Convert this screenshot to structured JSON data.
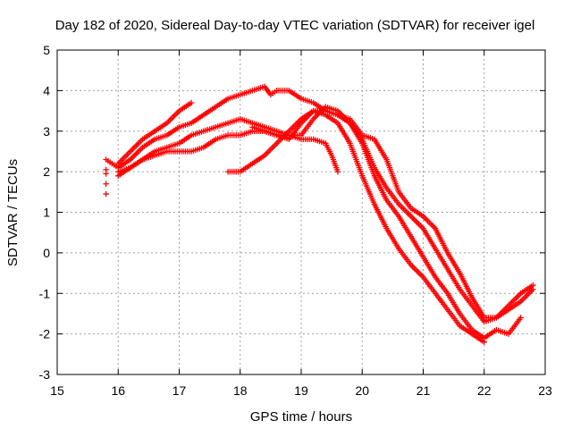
{
  "chart_data": {
    "type": "scatter",
    "title": "Day 182 of 2020, Sidereal Day-to-day VTEC variation (SDTVAR) for receiver igel",
    "xlabel": "GPS time / hours",
    "ylabel": "SDTVAR / TECUs",
    "xlim": [
      15,
      23
    ],
    "ylim": [
      -3,
      5
    ],
    "xticks": [
      "15",
      "16",
      "17",
      "18",
      "19",
      "20",
      "21",
      "22",
      "23"
    ],
    "yticks": [
      "-3",
      "-2",
      "-1",
      "0",
      "1",
      "2",
      "3",
      "4",
      "5"
    ],
    "grid": true,
    "marker": "+",
    "color": "#ff0000",
    "series": [
      {
        "name": "track-1",
        "x": [
          15.8,
          15.9,
          16.0,
          16.2,
          16.4,
          16.6,
          16.8,
          17.0,
          17.2,
          17.4,
          17.6,
          17.8,
          18.0,
          18.2,
          18.4,
          18.5,
          18.6,
          18.8,
          19.0,
          19.2,
          19.4,
          19.6,
          19.8,
          20.0,
          20.2,
          20.4,
          20.6,
          20.8,
          21.0,
          21.2,
          21.4,
          21.6,
          21.8,
          22.0,
          22.2,
          22.4,
          22.6,
          22.8
        ],
        "y": [
          2.3,
          2.2,
          2.1,
          2.3,
          2.6,
          2.8,
          2.9,
          3.1,
          3.2,
          3.4,
          3.6,
          3.8,
          3.9,
          4.0,
          4.1,
          3.9,
          4.0,
          4.0,
          3.8,
          3.7,
          3.5,
          3.4,
          3.3,
          2.9,
          2.8,
          2.3,
          1.5,
          1.1,
          0.9,
          0.6,
          0.0,
          -0.5,
          -1.1,
          -1.6,
          -1.6,
          -1.3,
          -1.0,
          -0.8
        ]
      },
      {
        "name": "track-2",
        "x": [
          16.0,
          16.2,
          16.4,
          16.6,
          16.8,
          17.0,
          17.2,
          17.4,
          17.6,
          17.8,
          18.0,
          18.2,
          18.4,
          18.6,
          18.8,
          19.0,
          19.2,
          19.4,
          19.6,
          19.8,
          20.0,
          20.2,
          20.4,
          20.6,
          20.8,
          21.0,
          21.2,
          21.4,
          21.6,
          21.8,
          22.0,
          22.2,
          22.4,
          22.6,
          22.8
        ],
        "y": [
          1.9,
          2.1,
          2.3,
          2.5,
          2.6,
          2.7,
          2.9,
          3.0,
          3.1,
          3.2,
          3.3,
          3.2,
          3.1,
          3.0,
          2.9,
          2.9,
          3.3,
          3.6,
          3.5,
          3.2,
          2.8,
          2.1,
          1.6,
          1.2,
          0.9,
          0.6,
          0.1,
          -0.4,
          -0.9,
          -1.3,
          -1.7,
          -1.6,
          -1.4,
          -1.2,
          -0.9
        ]
      },
      {
        "name": "track-3",
        "x": [
          16.0,
          16.2,
          16.4,
          16.6,
          16.8,
          17.0,
          17.2,
          17.4,
          17.6,
          17.8,
          18.0,
          18.2,
          18.4,
          18.6,
          18.8,
          19.0,
          19.2,
          19.4,
          19.5,
          19.6
        ],
        "y": [
          2.0,
          2.1,
          2.3,
          2.4,
          2.5,
          2.5,
          2.5,
          2.6,
          2.8,
          2.9,
          2.9,
          3.0,
          3.0,
          2.9,
          2.9,
          2.8,
          2.8,
          2.7,
          2.4,
          2.0
        ]
      },
      {
        "name": "track-4",
        "x": [
          16.0,
          16.2,
          16.4,
          16.6,
          16.8,
          17.0,
          17.2
        ],
        "y": [
          2.2,
          2.5,
          2.8,
          3.0,
          3.2,
          3.5,
          3.7
        ]
      },
      {
        "name": "track-5",
        "x": [
          17.8,
          18.0,
          18.2,
          18.4,
          18.6,
          18.8,
          19.0,
          19.2,
          19.4,
          19.6,
          19.8,
          20.0,
          20.2,
          20.4,
          20.6,
          20.8,
          21.0,
          21.2,
          21.4,
          21.6,
          21.8,
          22.0,
          22.2,
          22.4,
          22.6
        ],
        "y": [
          2.0,
          2.0,
          2.2,
          2.4,
          2.7,
          3.0,
          3.3,
          3.5,
          3.5,
          3.4,
          3.2,
          2.7,
          1.9,
          1.3,
          0.9,
          0.4,
          -0.1,
          -0.6,
          -1.0,
          -1.5,
          -1.9,
          -2.1,
          -1.9,
          -2.0,
          -1.6
        ]
      },
      {
        "name": "track-6",
        "x": [
          18.2,
          18.4,
          18.6,
          18.8,
          19.0,
          19.2,
          19.4,
          19.6,
          19.8,
          20.0,
          20.2,
          20.4,
          20.6,
          20.8,
          21.0,
          21.2,
          21.4,
          21.6,
          21.8,
          22.0
        ],
        "y": [
          3.1,
          3.0,
          2.9,
          2.8,
          3.2,
          3.5,
          3.4,
          3.2,
          2.7,
          1.9,
          1.2,
          0.6,
          0.1,
          -0.3,
          -0.6,
          -1.0,
          -1.4,
          -1.8,
          -2.0,
          -2.2
        ]
      },
      {
        "name": "start-points",
        "x": [
          15.8,
          15.8,
          15.8,
          15.8
        ],
        "y": [
          2.05,
          1.95,
          1.7,
          1.45
        ]
      }
    ]
  }
}
